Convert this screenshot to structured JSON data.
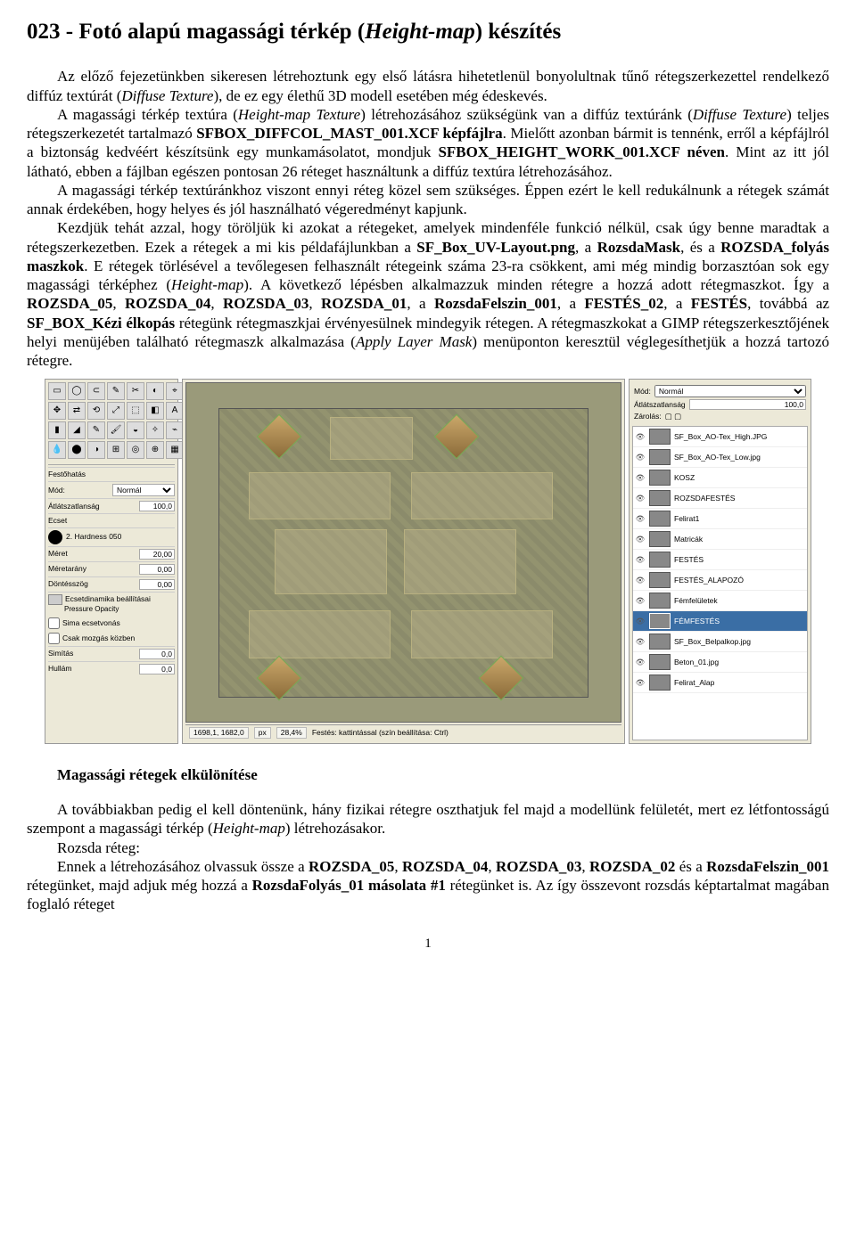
{
  "title": {
    "prefix": "023 - Fotó alapú magassági térkép (",
    "italic": "Height-map",
    "suffix": ") készítés"
  },
  "body": {
    "p1_a": "Az előző fejezetünkben sikeresen létrehoztunk egy első látásra hihetetlenül bonyolultnak tűnő rétegszerkezettel rendelkező diffúz textúrát (",
    "p1_i1": "Diffuse Texture",
    "p1_b": "), de ez egy élethű 3D modell esetében még édeskevés.",
    "p2_a": "A magassági térkép textúra (",
    "p2_i1": "Height-map Texture",
    "p2_b": ") létrehozásához szükségünk van a diffúz textúránk (",
    "p2_i2": "Diffuse Texture",
    "p2_c": ") teljes rétegszerkezetét tartalmazó ",
    "p2_bold1": "SFBOX_DIFFCOL_MAST_001.XCF képfájlra",
    "p2_d": ". Mielőtt azonban bármit is tennénk, erről a képfájlról a biztonság kedvéért készítsünk egy munkamásolatot, mondjuk ",
    "p2_bold2": "SFBOX_HEIGHT_WORK_001.XCF néven",
    "p2_e": ". Mint az itt jól látható, ebben a fájlban egészen pontosan 26 réteget használtunk a diffúz textúra létrehozásához.",
    "p3": "A magassági térkép textúránkhoz viszont ennyi réteg közel sem szükséges. Éppen ezért le kell redukálnunk a rétegek számát annak érdekében, hogy helyes és jól használható végeredményt kapjunk.",
    "p4_a": "Kezdjük tehát azzal, hogy töröljük ki azokat a rétegeket, amelyek mindenféle funkció nélkül, csak úgy benne maradtak a rétegszerkezetben. Ezek a rétegek a mi kis példafájlunkban a ",
    "p4_bold1": "SF_Box_UV-Layout.png",
    "p4_b": ", a ",
    "p4_bold2": "RozsdaMask",
    "p4_c": ", és a ",
    "p4_bold3": "ROZSDA_folyás maszkok",
    "p4_d": ". E rétegek törlésével a tevőlegesen felhasznált rétegeink száma 23-ra csökkent, ami még mindig borzasztóan sok egy magassági térképhez (",
    "p4_i1": "Height-map",
    "p4_e": "). A következő lépésben alkalmazzuk minden rétegre a hozzá adott rétegmaszkot. Így a ",
    "p4_bold4": "ROZSDA_05",
    "p4_f": ", ",
    "p4_bold5": "ROZSDA_04",
    "p4_g": ", ",
    "p4_bold6": "ROZSDA_03",
    "p4_h": ", ",
    "p4_bold7": "ROZSDA_01",
    "p4_i": ", a ",
    "p4_bold8": "RozsdaFelszin_001",
    "p4_j": ", a ",
    "p4_bold9": "FESTÉS_02",
    "p4_k": ", a ",
    "p4_bold10": "FESTÉS",
    "p4_l": ", továbbá az ",
    "p4_bold11": "SF_BOX_Kézi élkopás",
    "p4_m": " rétegünk rétegmaszkjai érvényesülnek mindegyik rétegen. A rétegmaszkokat a GIMP rétegszerkesztőjének helyi menüjében található rétegmaszk alkalmazása (",
    "p4_i2": "Apply Layer Mask",
    "p4_n": ") menüponton keresztül véglegesíthetjük a hozzá tartozó rétegre."
  },
  "section2_title": "Magassági rétegek elkülönítése",
  "body2": {
    "p1_a": "A továbbiakban pedig el kell döntenünk, hány fizikai rétegre oszthatjuk fel majd a modellünk felületét, mert ez létfontosságú szempont a magassági térkép (",
    "p1_i1": "Height-map",
    "p1_b": ") létrehozásakor.",
    "p2_a": "Rozsda réteg:",
    "p3_a": "Ennek a létrehozásához olvassuk össze a ",
    "p3_b1": "ROZSDA_05",
    "p3_b": ", ",
    "p3_b2": "ROZSDA_04",
    "p3_c": ", ",
    "p3_b3": "ROZSDA_03",
    "p3_d": ", ",
    "p3_b4": "ROZSDA_02",
    "p3_e": " és a ",
    "p3_b5": "RozsdaFelszin_001",
    "p3_f": " rétegünket, majd adjuk még hozzá a ",
    "p3_b6": "RozsdaFolyás_01 másolata #1",
    "p3_g": " rétegünket is. Az így összevont rozsdás képtartalmat magában foglaló réteget"
  },
  "page_number": "1",
  "gimp": {
    "toolbox": {
      "label_festohatas": "Festőhatás",
      "label_mod": "Mód:",
      "mod_value": "Normál",
      "label_atlatszo": "Átlátszatlanság",
      "atlatszo_value": "100,0",
      "label_ecset": "Ecset",
      "ecset_value": "2. Hardness 050",
      "label_meret": "Méret",
      "meret_value": "20,00",
      "label_meret_arany": "Méretarány",
      "arany_value": "0,00",
      "label_dontesszog": "Döntésszög",
      "dontes_value": "0,00",
      "chk_dyn": "Ecsetdinamika beállításai",
      "chk_sima": "Sima ecsetvonás",
      "chk_csak": "Csak mozgás közben",
      "label_simitas": "Simítás",
      "simitas_value": "0,0",
      "label_hullam": "Hullám",
      "hullam_value": "0,0",
      "dyn_label": "Pressure Opacity"
    },
    "status": {
      "coords": "1698,1, 1682,0",
      "unit": "px",
      "zoom": "28,4%",
      "hint": "Festés: kattintással (szín beállítása: Ctrl)"
    },
    "layers_panel": {
      "label_mod": "Mód:",
      "mod_value": "Normál",
      "label_atlatszo": "Átlátszatlanság",
      "atlatszo_value": "100,0",
      "label_zaolas": "Zárolás:",
      "layers": [
        {
          "name": "SF_Box_AO-Tex_High.JPG",
          "sel": false
        },
        {
          "name": "SF_Box_AO-Tex_Low.jpg",
          "sel": false
        },
        {
          "name": "KOSZ",
          "sel": false
        },
        {
          "name": "ROZSDAFESTÉS",
          "sel": false
        },
        {
          "name": "Felirat1",
          "sel": false
        },
        {
          "name": "Matricák",
          "sel": false
        },
        {
          "name": "FESTÉS",
          "sel": false
        },
        {
          "name": "FESTÉS_ALAPOZÓ",
          "sel": false
        },
        {
          "name": "Fémfelületek",
          "sel": false
        },
        {
          "name": "FÉMFESTÉS",
          "sel": true
        },
        {
          "name": "SF_Box_Belpalkop.jpg",
          "sel": false
        },
        {
          "name": "Beton_01.jpg",
          "sel": false
        },
        {
          "name": "Felirat_Alap",
          "sel": false
        }
      ]
    }
  }
}
